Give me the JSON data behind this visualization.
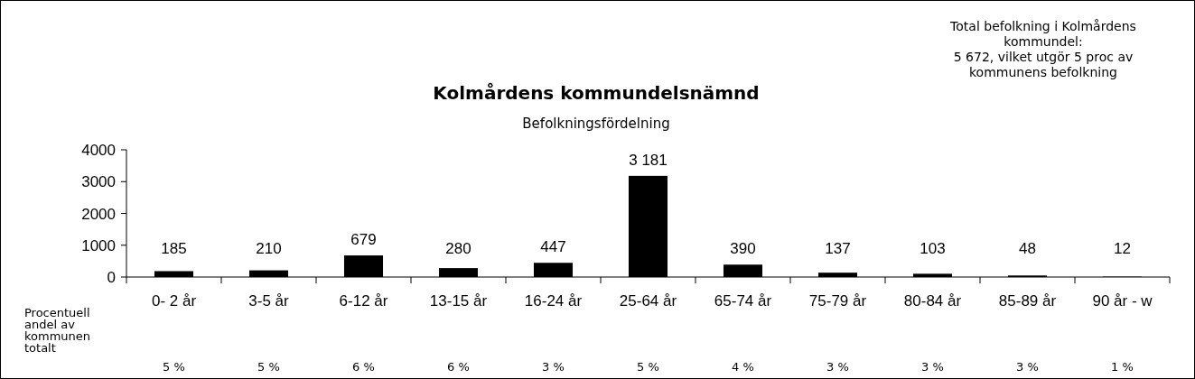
{
  "chart_data": {
    "type": "bar",
    "title": "Kolmårdens kommundelsnämnd",
    "subtitle": "Befolkningsfördelning",
    "categories": [
      "0- 2 år",
      "3-5 år",
      "6-12 år",
      "13-15 år",
      "16-24 år",
      "25-64 år",
      "65-74 år",
      "75-79 år",
      "80-84 år",
      "85-89 år",
      "90 år - w"
    ],
    "values": [
      185,
      210,
      679,
      280,
      447,
      3181,
      390,
      137,
      103,
      48,
      12
    ],
    "value_labels": [
      "185",
      "210",
      "679",
      "280",
      "447",
      "3 181",
      "390",
      "137",
      "103",
      "48",
      "12"
    ],
    "color": "#000000",
    "ylim": [
      0,
      4000
    ],
    "yticks": [
      0,
      1000,
      2000,
      3000,
      4000
    ],
    "grid": false,
    "annotations": [
      "Total befolkning i Kolmårdens kommundel: 5 672, vilket utgör 5 proc av kommunens befolkning",
      "Procentuell andel av kommunen totalt",
      "5 %",
      "5 %",
      "6 %",
      "6 %",
      "3 %",
      "5 %",
      "4 %",
      "3 %",
      "3 %",
      "3 %",
      "1 %"
    ]
  }
}
